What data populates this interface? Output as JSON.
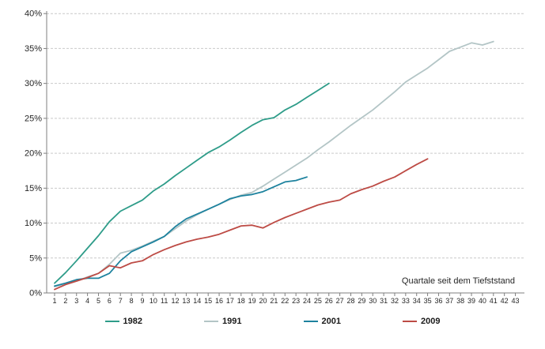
{
  "chart_data": {
    "type": "line",
    "xlabel": "Quartale seit dem Tiefststand",
    "ylabel": "",
    "x_axis": {
      "min": 1,
      "max": 43,
      "step": 1
    },
    "y_axis": {
      "min": 0,
      "max": 40,
      "step": 5,
      "unit": "%"
    },
    "y_tick_labels": [
      "0%",
      "5%",
      "10%",
      "15%",
      "20%",
      "25%",
      "30%",
      "35%",
      "40%"
    ],
    "grid": "horizontal-dashed",
    "legend_position": "bottom",
    "series": [
      {
        "name": "1982",
        "color": "#2e9c89",
        "x_start": 1,
        "values": [
          1.4,
          2.9,
          4.6,
          6.4,
          8.2,
          10.2,
          11.7,
          12.5,
          13.3,
          14.6,
          15.6,
          16.8,
          17.9,
          19.0,
          20.1,
          20.9,
          21.9,
          23.0,
          24.0,
          24.8,
          25.1,
          26.2,
          27.0,
          28.0,
          29.0,
          30.0
        ]
      },
      {
        "name": "1991",
        "color": "#b3c5c6",
        "x_start": 1,
        "values": [
          0.9,
          1.3,
          1.7,
          2.3,
          2.8,
          4.1,
          5.7,
          6.1,
          6.7,
          7.4,
          8.1,
          9.2,
          10.3,
          11.2,
          12.0,
          12.7,
          13.4,
          14.0,
          14.4,
          15.3,
          16.3,
          17.3,
          18.3,
          19.3,
          20.5,
          21.6,
          22.8,
          24.0,
          25.1,
          26.2,
          27.5,
          28.8,
          30.2,
          31.2,
          32.2,
          33.4,
          34.6,
          35.2,
          35.8,
          35.5,
          36.0
        ]
      },
      {
        "name": "2001",
        "color": "#1d829e",
        "x_start": 1,
        "values": [
          1.0,
          1.4,
          1.9,
          2.1,
          2.1,
          2.8,
          4.6,
          5.9,
          6.6,
          7.3,
          8.1,
          9.5,
          10.6,
          11.3,
          12.0,
          12.7,
          13.5,
          13.9,
          14.1,
          14.5,
          15.2,
          15.9,
          16.1,
          16.6
        ]
      },
      {
        "name": "2009",
        "color": "#bd4b45",
        "x_start": 1,
        "values": [
          0.5,
          1.2,
          1.7,
          2.2,
          2.8,
          3.9,
          3.6,
          4.3,
          4.6,
          5.5,
          6.2,
          6.8,
          7.3,
          7.7,
          8.0,
          8.4,
          9.0,
          9.6,
          9.7,
          9.3,
          10.1,
          10.8,
          11.4,
          12.0,
          12.6,
          13.0,
          13.3,
          14.2,
          14.8,
          15.3,
          16.0,
          16.6,
          17.5,
          18.4,
          19.2
        ]
      }
    ]
  }
}
